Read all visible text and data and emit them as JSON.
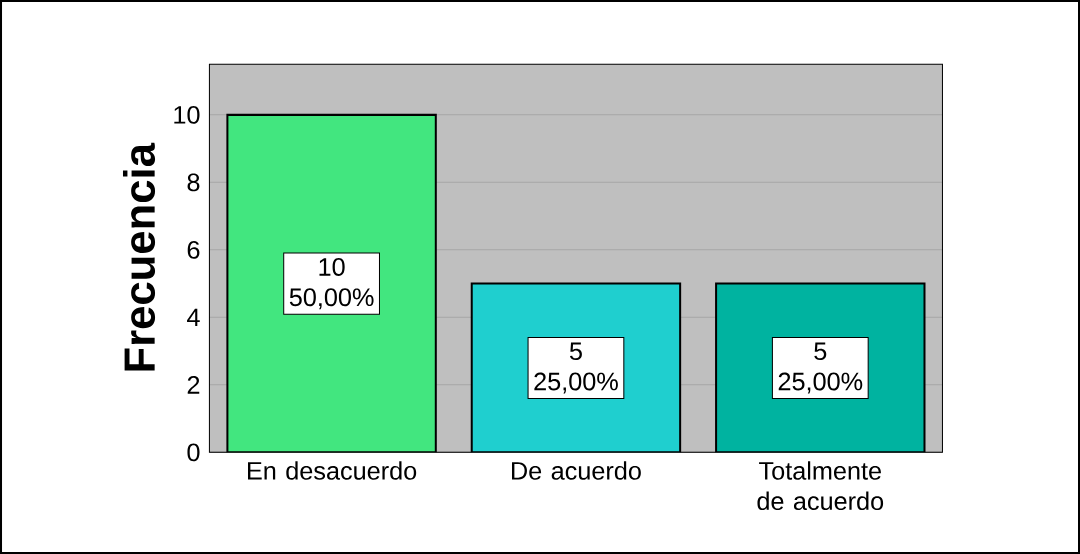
{
  "chart_data": {
    "type": "bar",
    "ylabel": "Frecuencia",
    "categories": [
      "En desacuerdo",
      "De acuerdo",
      "Totalmente de acuerdo"
    ],
    "values": [
      10,
      5,
      5
    ],
    "colors": [
      "#42e67f",
      "#1fcfcf",
      "#00b3a0"
    ],
    "value_labels": [
      "10",
      "5",
      "5"
    ],
    "annotations": [
      "50,00%",
      "25,00%",
      "25,00%"
    ],
    "ylim": [
      0,
      11.5
    ],
    "yticks": [
      0,
      2,
      4,
      6,
      8,
      10
    ],
    "grid": "y"
  }
}
